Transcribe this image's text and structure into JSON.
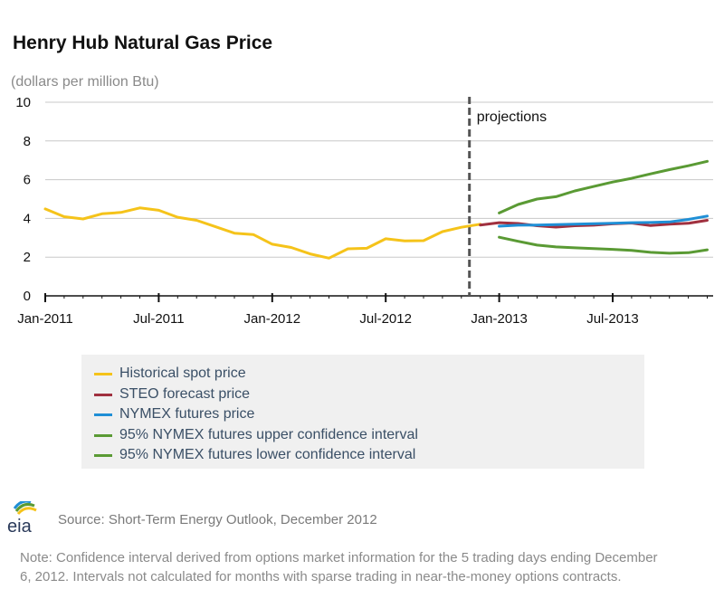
{
  "title": "Henry Hub Natural Gas Price",
  "units": "(dollars per million Btu)",
  "projections_label": "projections",
  "source": "Source: Short-Term Energy Outlook, December 2012",
  "note": "Note: Confidence interval derived from options market information for the 5 trading days ending December 6, 2012. Intervals not calculated for months with sparse trading in near-the-money options contracts.",
  "logo_text": "eia",
  "colors": {
    "historical": "#f5c31a",
    "steo": "#a0303f",
    "nymex": "#1f8fd6",
    "upper": "#5a9a34",
    "lower": "#5a9a34",
    "grid": "#c8c8c8",
    "divider": "#555555"
  },
  "chart_data": {
    "type": "line",
    "title": "Henry Hub Natural Gas Price",
    "ylabel": "(dollars per million Btu)",
    "xlabel": "",
    "ylim": [
      0,
      10
    ],
    "yticks": [
      0,
      2,
      4,
      6,
      8,
      10
    ],
    "x_tick_labels": [
      "Jan-2011",
      "Jul-2011",
      "Jan-2012",
      "Jul-2012",
      "Jan-2013",
      "Jul-2013"
    ],
    "x_tick_months": [
      "2011-01",
      "2011-07",
      "2012-01",
      "2012-07",
      "2013-01",
      "2013-07"
    ],
    "x_range": [
      "2011-01",
      "2013-12"
    ],
    "projection_start": "2012-12",
    "grid": true,
    "legend_position": "bottom",
    "series": [
      {
        "name": "Historical spot price",
        "color": "#f5c31a",
        "x": [
          "2011-01",
          "2011-02",
          "2011-03",
          "2011-04",
          "2011-05",
          "2011-06",
          "2011-07",
          "2011-08",
          "2011-09",
          "2011-10",
          "2011-11",
          "2011-12",
          "2012-01",
          "2012-02",
          "2012-03",
          "2012-04",
          "2012-05",
          "2012-06",
          "2012-07",
          "2012-08",
          "2012-09",
          "2012-10",
          "2012-11",
          "2012-12"
        ],
        "values": [
          4.49,
          4.09,
          3.97,
          4.24,
          4.31,
          4.54,
          4.42,
          4.06,
          3.9,
          3.57,
          3.24,
          3.17,
          2.67,
          2.5,
          2.17,
          1.95,
          2.43,
          2.46,
          2.95,
          2.84,
          2.85,
          3.32,
          3.54,
          3.7
        ]
      },
      {
        "name": "STEO forecast price",
        "color": "#a0303f",
        "x": [
          "2012-12",
          "2013-01",
          "2013-02",
          "2013-03",
          "2013-04",
          "2013-05",
          "2013-06",
          "2013-07",
          "2013-08",
          "2013-09",
          "2013-10",
          "2013-11",
          "2013-12"
        ],
        "values": [
          3.66,
          3.78,
          3.74,
          3.62,
          3.55,
          3.62,
          3.65,
          3.72,
          3.76,
          3.63,
          3.7,
          3.75,
          3.9
        ]
      },
      {
        "name": "NYMEX futures price",
        "color": "#1f8fd6",
        "x": [
          "2013-01",
          "2013-02",
          "2013-03",
          "2013-04",
          "2013-05",
          "2013-06",
          "2013-07",
          "2013-08",
          "2013-09",
          "2013-10",
          "2013-11",
          "2013-12"
        ],
        "values": [
          3.6,
          3.65,
          3.66,
          3.68,
          3.7,
          3.73,
          3.75,
          3.78,
          3.79,
          3.82,
          3.95,
          4.12
        ]
      },
      {
        "name": "95% NYMEX futures upper confidence interval",
        "color": "#5a9a34",
        "x": [
          "2013-01",
          "2013-02",
          "2013-03",
          "2013-04",
          "2013-05",
          "2013-06",
          "2013-07",
          "2013-08",
          "2013-09",
          "2013-10",
          "2013-11",
          "2013-12"
        ],
        "values": [
          4.28,
          4.72,
          5.0,
          5.12,
          5.42,
          5.65,
          5.88,
          6.07,
          6.3,
          6.52,
          6.72,
          6.95
        ]
      },
      {
        "name": "95% NYMEX futures lower confidence interval",
        "color": "#5a9a34",
        "x": [
          "2013-01",
          "2013-02",
          "2013-03",
          "2013-04",
          "2013-05",
          "2013-06",
          "2013-07",
          "2013-08",
          "2013-09",
          "2013-10",
          "2013-11",
          "2013-12"
        ],
        "values": [
          3.03,
          2.82,
          2.62,
          2.53,
          2.48,
          2.44,
          2.4,
          2.35,
          2.25,
          2.2,
          2.23,
          2.38
        ]
      }
    ]
  }
}
